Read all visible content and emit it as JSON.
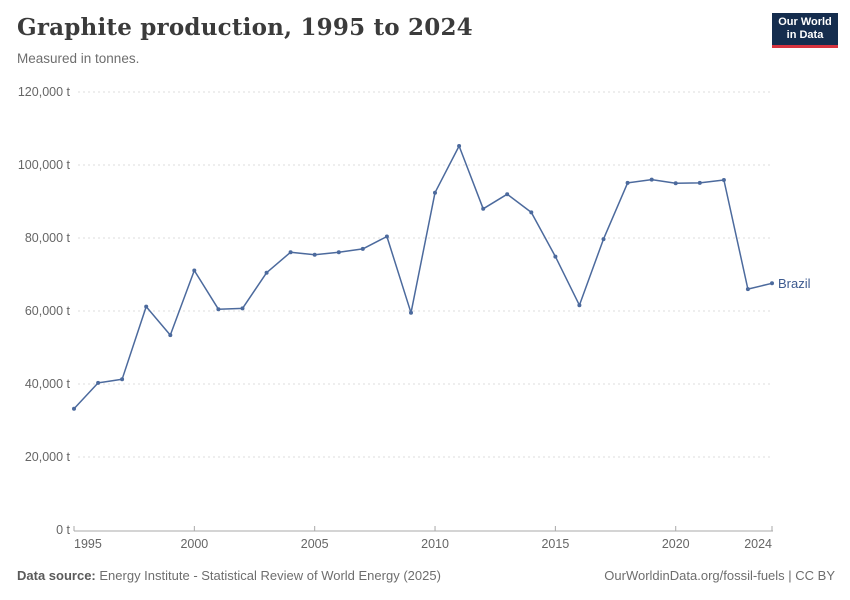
{
  "header": {
    "title": "Graphite production, 1995 to 2024",
    "subtitle": "Measured in tonnes."
  },
  "logo": {
    "line1": "Our World",
    "line2": "in Data"
  },
  "footer": {
    "source_label": "Data source:",
    "source": "Energy Institute - Statistical Review of World Energy (2025)",
    "right": "OurWorldinData.org/fossil-fuels | CC BY"
  },
  "theme": {
    "line_color": "#4c6a9d",
    "series_label_color": "#3d5a8f",
    "grid_color": "#dddddd",
    "axis_line_color": "#a8a8a8",
    "axis_text_color": "#666666",
    "title_color": "#3b3b3b",
    "subtitle_color": "#6e6e6e",
    "footer_color": "#6e6e6e",
    "logo_bg": "#152d4e",
    "logo_red": "#d7333f"
  },
  "chart_data": {
    "type": "line",
    "title": "Graphite production, 1995 to 2024",
    "subtitle": "Measured in tonnes.",
    "xlabel": "",
    "ylabel": "tonnes",
    "xlim": [
      1995,
      2024
    ],
    "ylim": [
      0,
      120000
    ],
    "grid": "horizontal-dashed",
    "legend_position": "end-of-line",
    "x": [
      1995,
      1996,
      1997,
      1998,
      1999,
      2000,
      2001,
      2002,
      2003,
      2004,
      2005,
      2006,
      2007,
      2008,
      2009,
      2010,
      2011,
      2012,
      2013,
      2014,
      2015,
      2016,
      2017,
      2018,
      2019,
      2020,
      2021,
      2022,
      2023,
      2024
    ],
    "series": [
      {
        "name": "Brazil",
        "values": [
          33200,
          40300,
          41300,
          61200,
          53400,
          71100,
          60500,
          60700,
          70500,
          76100,
          75400,
          76100,
          77000,
          80400,
          59500,
          92400,
          105200,
          88000,
          92000,
          87000,
          74900,
          61600,
          79700,
          95100,
          96000,
          95000,
          95100,
          95900,
          66000,
          67600
        ]
      }
    ],
    "y_ticks": [
      {
        "value": 0,
        "label": "0 t"
      },
      {
        "value": 20000,
        "label": "20,000 t"
      },
      {
        "value": 40000,
        "label": "40,000 t"
      },
      {
        "value": 60000,
        "label": "60,000 t"
      },
      {
        "value": 80000,
        "label": "80,000 t"
      },
      {
        "value": 100000,
        "label": "100,000 t"
      },
      {
        "value": 120000,
        "label": "120,000 t"
      }
    ],
    "x_ticks": [
      {
        "value": 1995,
        "label": "1995",
        "align": "start"
      },
      {
        "value": 2000,
        "label": "2000",
        "align": "middle"
      },
      {
        "value": 2005,
        "label": "2005",
        "align": "middle"
      },
      {
        "value": 2010,
        "label": "2010",
        "align": "middle"
      },
      {
        "value": 2015,
        "label": "2015",
        "align": "middle"
      },
      {
        "value": 2020,
        "label": "2020",
        "align": "middle"
      },
      {
        "value": 2024,
        "label": "2024",
        "align": "end"
      }
    ]
  }
}
